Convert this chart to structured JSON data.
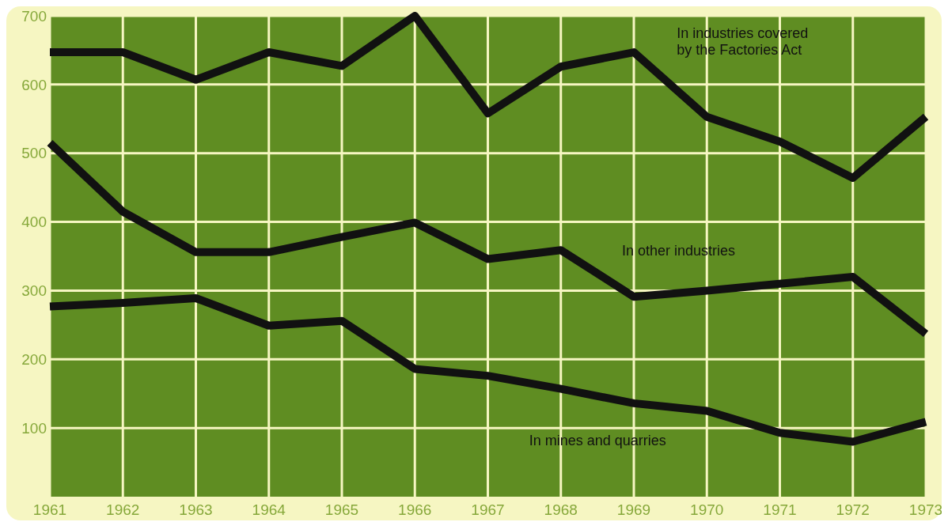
{
  "chart_data": {
    "type": "line",
    "categories": [
      "1961",
      "1962",
      "1963",
      "1964",
      "1965",
      "1966",
      "1967",
      "1968",
      "1969",
      "1970",
      "1971",
      "1972",
      "1973"
    ],
    "ylim": [
      0,
      700
    ],
    "yticks": [
      100,
      200,
      300,
      400,
      500,
      600,
      700
    ],
    "grid": true,
    "legend": false,
    "marker": "none",
    "line_style": "solid",
    "series": [
      {
        "name": "In industries covered by the Factories Act",
        "color": "#111111",
        "values": [
          647,
          647,
          607,
          647,
          627,
          700,
          558,
          626,
          647,
          553,
          517,
          464,
          553
        ]
      },
      {
        "name": "In other industries",
        "color": "#111111",
        "values": [
          515,
          415,
          356,
          356,
          378,
          399,
          346,
          359,
          291,
          300,
          310,
          320,
          237
        ]
      },
      {
        "name": "In mines and quarries",
        "color": "#111111",
        "values": [
          277,
          282,
          289,
          249,
          256,
          186,
          176,
          157,
          136,
          125,
          93,
          80,
          109
        ]
      }
    ]
  }
}
